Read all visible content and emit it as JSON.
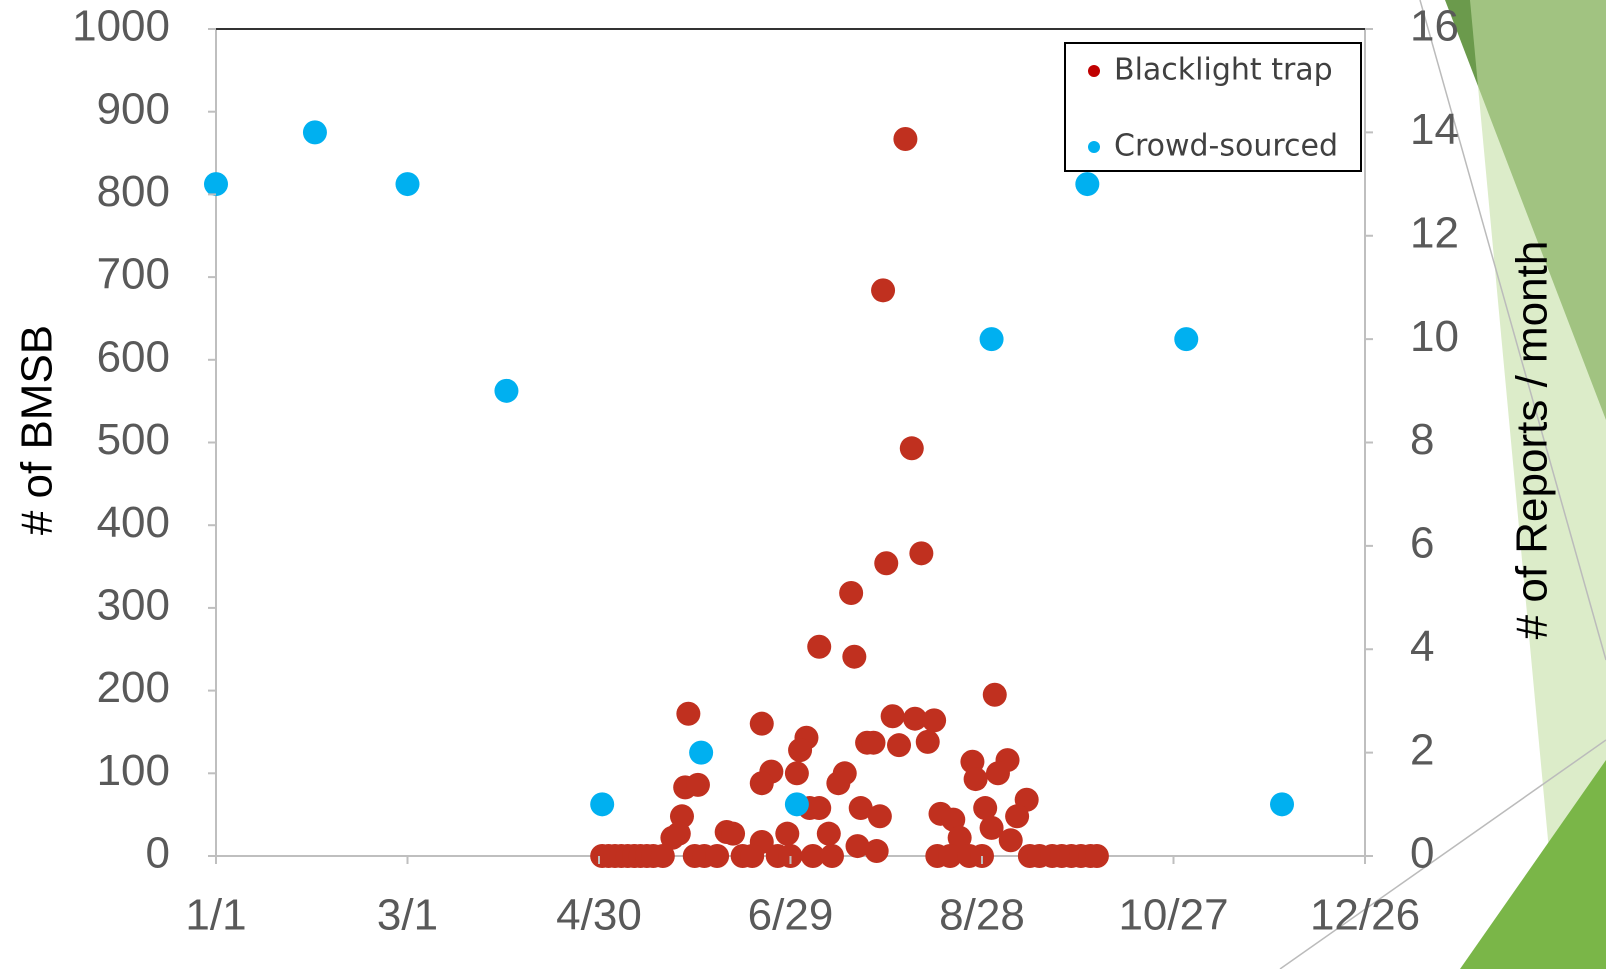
{
  "chart_data": {
    "type": "scatter",
    "y_label": "# of BMSB",
    "y2_label": "# of Reports / month",
    "xlim": [
      0,
      360
    ],
    "xticks": [
      {
        "value": 0,
        "label": "1/1"
      },
      {
        "value": 60,
        "label": "3/1"
      },
      {
        "value": 120,
        "label": "4/30"
      },
      {
        "value": 180,
        "label": "6/29"
      },
      {
        "value": 240,
        "label": "8/28"
      },
      {
        "value": 300,
        "label": "10/27"
      },
      {
        "value": 360,
        "label": "12/26"
      }
    ],
    "ylim": [
      0,
      1000
    ],
    "yticks": [
      0,
      100,
      200,
      300,
      400,
      500,
      600,
      700,
      800,
      900,
      1000
    ],
    "y2lim": [
      0,
      16
    ],
    "y2ticks": [
      0,
      2,
      4,
      6,
      8,
      10,
      12,
      14,
      16
    ],
    "legend": "top-right",
    "series": [
      {
        "name": "Blacklight trap",
        "color": "#c0301f",
        "legend_color": "#c00000",
        "axis": "y",
        "x": [
          216,
          209,
          218,
          221,
          210,
          199,
          200,
          189,
          244,
          148,
          171,
          212,
          219,
          225,
          185,
          183,
          204,
          206,
          214,
          223,
          248,
          237,
          174,
          182,
          197,
          245,
          238,
          147,
          151,
          171,
          195,
          254,
          186,
          189,
          202,
          241,
          227,
          231,
          146,
          208,
          251,
          243,
          160,
          162,
          192,
          179,
          145,
          143,
          171,
          233,
          249,
          201,
          207,
          121,
          123,
          125,
          127,
          129,
          131,
          133,
          135,
          137,
          140,
          150,
          153,
          157,
          165,
          168,
          176,
          180,
          187,
          193,
          226,
          230,
          236,
          240,
          255,
          258,
          262,
          265,
          268,
          271,
          274,
          276
        ],
        "values": [
          867,
          684,
          493,
          366,
          354,
          318,
          241,
          253,
          195,
          172,
          160,
          169,
          166,
          164,
          143,
          128,
          137,
          137,
          134,
          138,
          116,
          114,
          102,
          100,
          100,
          100,
          93,
          83,
          86,
          88,
          88,
          68,
          58,
          58,
          58,
          58,
          51,
          44,
          48,
          48,
          48,
          34,
          29,
          27,
          27,
          27,
          27,
          22,
          17,
          22,
          19,
          12,
          6,
          0,
          0,
          0,
          0,
          0,
          0,
          0,
          0,
          0,
          0,
          0,
          0,
          0,
          0,
          0,
          0,
          0,
          0,
          0,
          0,
          0,
          0,
          0,
          0,
          0,
          0,
          0,
          0,
          0,
          0,
          0
        ]
      },
      {
        "name": "Crowd-sourced",
        "color": "#00b0f0",
        "legend_color": "#00b0f0",
        "axis": "y2",
        "x": [
          0,
          31,
          60,
          91,
          121,
          152,
          182,
          243,
          273,
          304,
          334
        ],
        "values": [
          13,
          14,
          13,
          9,
          1,
          2,
          1,
          10,
          13,
          10,
          1
        ]
      }
    ]
  }
}
